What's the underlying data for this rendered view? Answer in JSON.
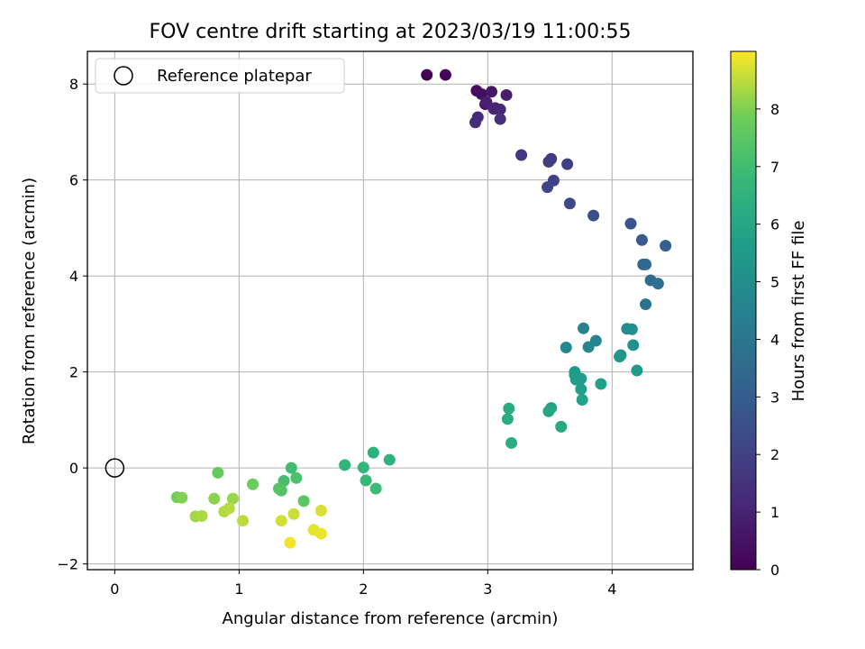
{
  "chart_data": {
    "type": "scatter",
    "title": "FOV centre drift starting at 2023/03/19 11:00:55",
    "xlabel": "Angular distance from reference (arcmin)",
    "ylabel": "Rotation from reference (arcmin)",
    "xlim": [
      -0.22,
      4.65
    ],
    "ylim": [
      -2.12,
      8.68
    ],
    "xticks": [
      0,
      1,
      2,
      3,
      4
    ],
    "yticks": [
      -2,
      0,
      2,
      4,
      6,
      8
    ],
    "grid": true,
    "colormap": "viridis",
    "colorbar": {
      "label": "Hours from first FF file",
      "range": [
        0,
        9
      ],
      "ticks": [
        0,
        1,
        2,
        3,
        4,
        5,
        6,
        7,
        8
      ]
    },
    "legend": {
      "placement": "top-left",
      "entries": [
        {
          "label": "Reference platepar",
          "marker": "open-circle"
        }
      ]
    },
    "reference_point": {
      "x": 0,
      "y": 0
    },
    "series": [
      {
        "x": [
          2.51,
          2.66,
          2.91,
          2.95,
          2.98,
          3.03,
          3.06,
          3.15,
          2.99,
          3.05,
          3.1,
          2.92,
          2.9,
          3.1,
          3.27,
          3.51,
          3.49,
          3.64,
          3.53,
          3.48,
          3.66,
          3.85,
          4.15,
          4.24,
          4.43,
          4.25,
          4.27,
          4.31,
          4.37,
          4.27,
          3.77,
          3.87,
          3.81,
          3.63,
          4.12,
          4.16,
          4.17,
          4.07,
          4.06,
          4.2,
          3.7,
          3.7,
          3.75,
          3.71,
          3.75,
          3.91,
          3.76,
          3.51,
          3.49,
          3.59,
          3.17,
          3.16,
          3.19,
          2.08,
          2.21,
          1.85,
          2.0,
          2.02,
          2.1,
          1.42,
          1.36,
          1.46,
          1.34,
          1.32,
          1.52,
          0.83,
          1.11,
          0.5,
          0.54,
          0.8,
          0.95,
          0.65,
          0.7,
          0.88,
          0.92,
          1.03,
          1.44,
          1.34,
          1.66,
          1.6,
          1.66,
          1.41
        ],
        "y": [
          8.19,
          8.19,
          7.86,
          7.79,
          7.58,
          7.84,
          7.5,
          7.77,
          7.62,
          7.48,
          7.47,
          7.31,
          7.2,
          7.27,
          6.52,
          6.44,
          6.38,
          6.33,
          5.99,
          5.85,
          5.51,
          5.26,
          5.09,
          4.75,
          4.63,
          4.24,
          4.24,
          3.91,
          3.84,
          3.41,
          2.91,
          2.65,
          2.52,
          2.51,
          2.9,
          2.89,
          2.56,
          2.35,
          2.32,
          2.03,
          2.0,
          1.94,
          1.86,
          1.84,
          1.64,
          1.75,
          1.42,
          1.25,
          1.18,
          0.86,
          1.24,
          1.02,
          0.52,
          0.32,
          0.17,
          0.06,
          0.01,
          -0.26,
          -0.43,
          0.0,
          -0.27,
          -0.21,
          -0.47,
          -0.43,
          -0.69,
          -0.1,
          -0.34,
          -0.61,
          -0.62,
          -0.64,
          -0.64,
          -1.01,
          -1.0,
          -0.91,
          -0.84,
          -1.1,
          -0.96,
          -1.1,
          -0.89,
          -1.29,
          -1.37,
          -1.56
        ],
        "c": [
          0.0,
          0.1,
          0.3,
          0.4,
          0.5,
          0.6,
          0.7,
          0.8,
          0.9,
          1.0,
          1.1,
          1.2,
          1.3,
          1.4,
          1.6,
          1.7,
          1.8,
          1.9,
          2.0,
          2.1,
          2.3,
          2.5,
          2.7,
          2.9,
          3.1,
          3.3,
          3.5,
          3.6,
          3.7,
          3.8,
          4.5,
          4.6,
          4.7,
          4.8,
          4.9,
          5.0,
          5.1,
          5.2,
          5.3,
          5.4,
          5.5,
          5.55,
          5.6,
          5.65,
          5.7,
          5.75,
          5.8,
          5.9,
          6.0,
          6.1,
          6.2,
          6.25,
          6.3,
          6.4,
          6.5,
          6.6,
          6.7,
          6.8,
          6.9,
          7.0,
          7.1,
          7.2,
          7.3,
          7.4,
          7.5,
          7.7,
          7.8,
          7.9,
          8.0,
          8.1,
          8.2,
          8.3,
          8.35,
          8.4,
          8.45,
          8.5,
          8.6,
          8.65,
          8.7,
          8.8,
          8.85,
          8.9
        ]
      }
    ]
  }
}
